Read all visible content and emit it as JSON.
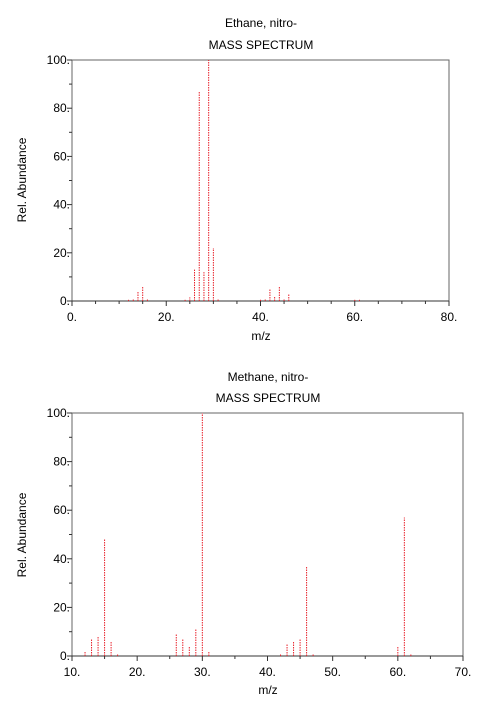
{
  "chart_data": [
    {
      "type": "bar",
      "title": "Ethane, nitro-",
      "subtitle": "MASS SPECTRUM",
      "xlabel": "m/z",
      "ylabel": "Rel. Abundance",
      "xlim": [
        0,
        80
      ],
      "ylim": [
        0,
        100
      ],
      "xticks": [
        0,
        20,
        40,
        60,
        80
      ],
      "xtick_labels": [
        "0.",
        "20.",
        "40.",
        "60.",
        "80."
      ],
      "yticks": [
        0,
        20,
        40,
        60,
        80,
        100
      ],
      "ytick_labels": [
        "0.",
        "20.",
        "40.",
        "60.",
        "80.",
        "100."
      ],
      "bar_color": "#e8202a",
      "peaks": {
        "mz": [
          12,
          13,
          14,
          15,
          16,
          24,
          25,
          26,
          27,
          28,
          29,
          30,
          31,
          40,
          41,
          42,
          43,
          44,
          45,
          46,
          60,
          61
        ],
        "abundance": [
          0.5,
          1,
          4,
          6,
          1,
          0.5,
          1.5,
          13,
          87,
          12,
          100,
          22,
          1,
          0.5,
          1,
          5,
          2,
          6,
          1,
          3,
          0.5,
          0.5
        ]
      }
    },
    {
      "type": "bar",
      "title": "Methane, nitro-",
      "subtitle": "MASS SPECTRUM",
      "xlabel": "m/z",
      "ylabel": "Rel. Abundance",
      "xlim": [
        10,
        70
      ],
      "ylim": [
        0,
        100
      ],
      "xticks": [
        10,
        20,
        30,
        40,
        50,
        60,
        70
      ],
      "xtick_labels": [
        "10.",
        "20.",
        "30.",
        "40.",
        "50.",
        "60.",
        "70."
      ],
      "yticks": [
        0,
        20,
        40,
        60,
        80,
        100
      ],
      "ytick_labels": [
        "0.",
        "20.",
        "40.",
        "60.",
        "80.",
        "100."
      ],
      "bar_color": "#e8202a",
      "peaks": {
        "mz": [
          12,
          13,
          14,
          15,
          16,
          17,
          26,
          27,
          28,
          29,
          30,
          31,
          42,
          43,
          44,
          45,
          46,
          47,
          60,
          61,
          62
        ],
        "abundance": [
          2,
          7,
          8,
          48,
          6,
          1,
          9,
          7,
          4,
          11,
          100,
          2,
          1,
          5,
          6,
          7,
          37,
          1,
          4,
          57,
          1
        ]
      }
    }
  ]
}
